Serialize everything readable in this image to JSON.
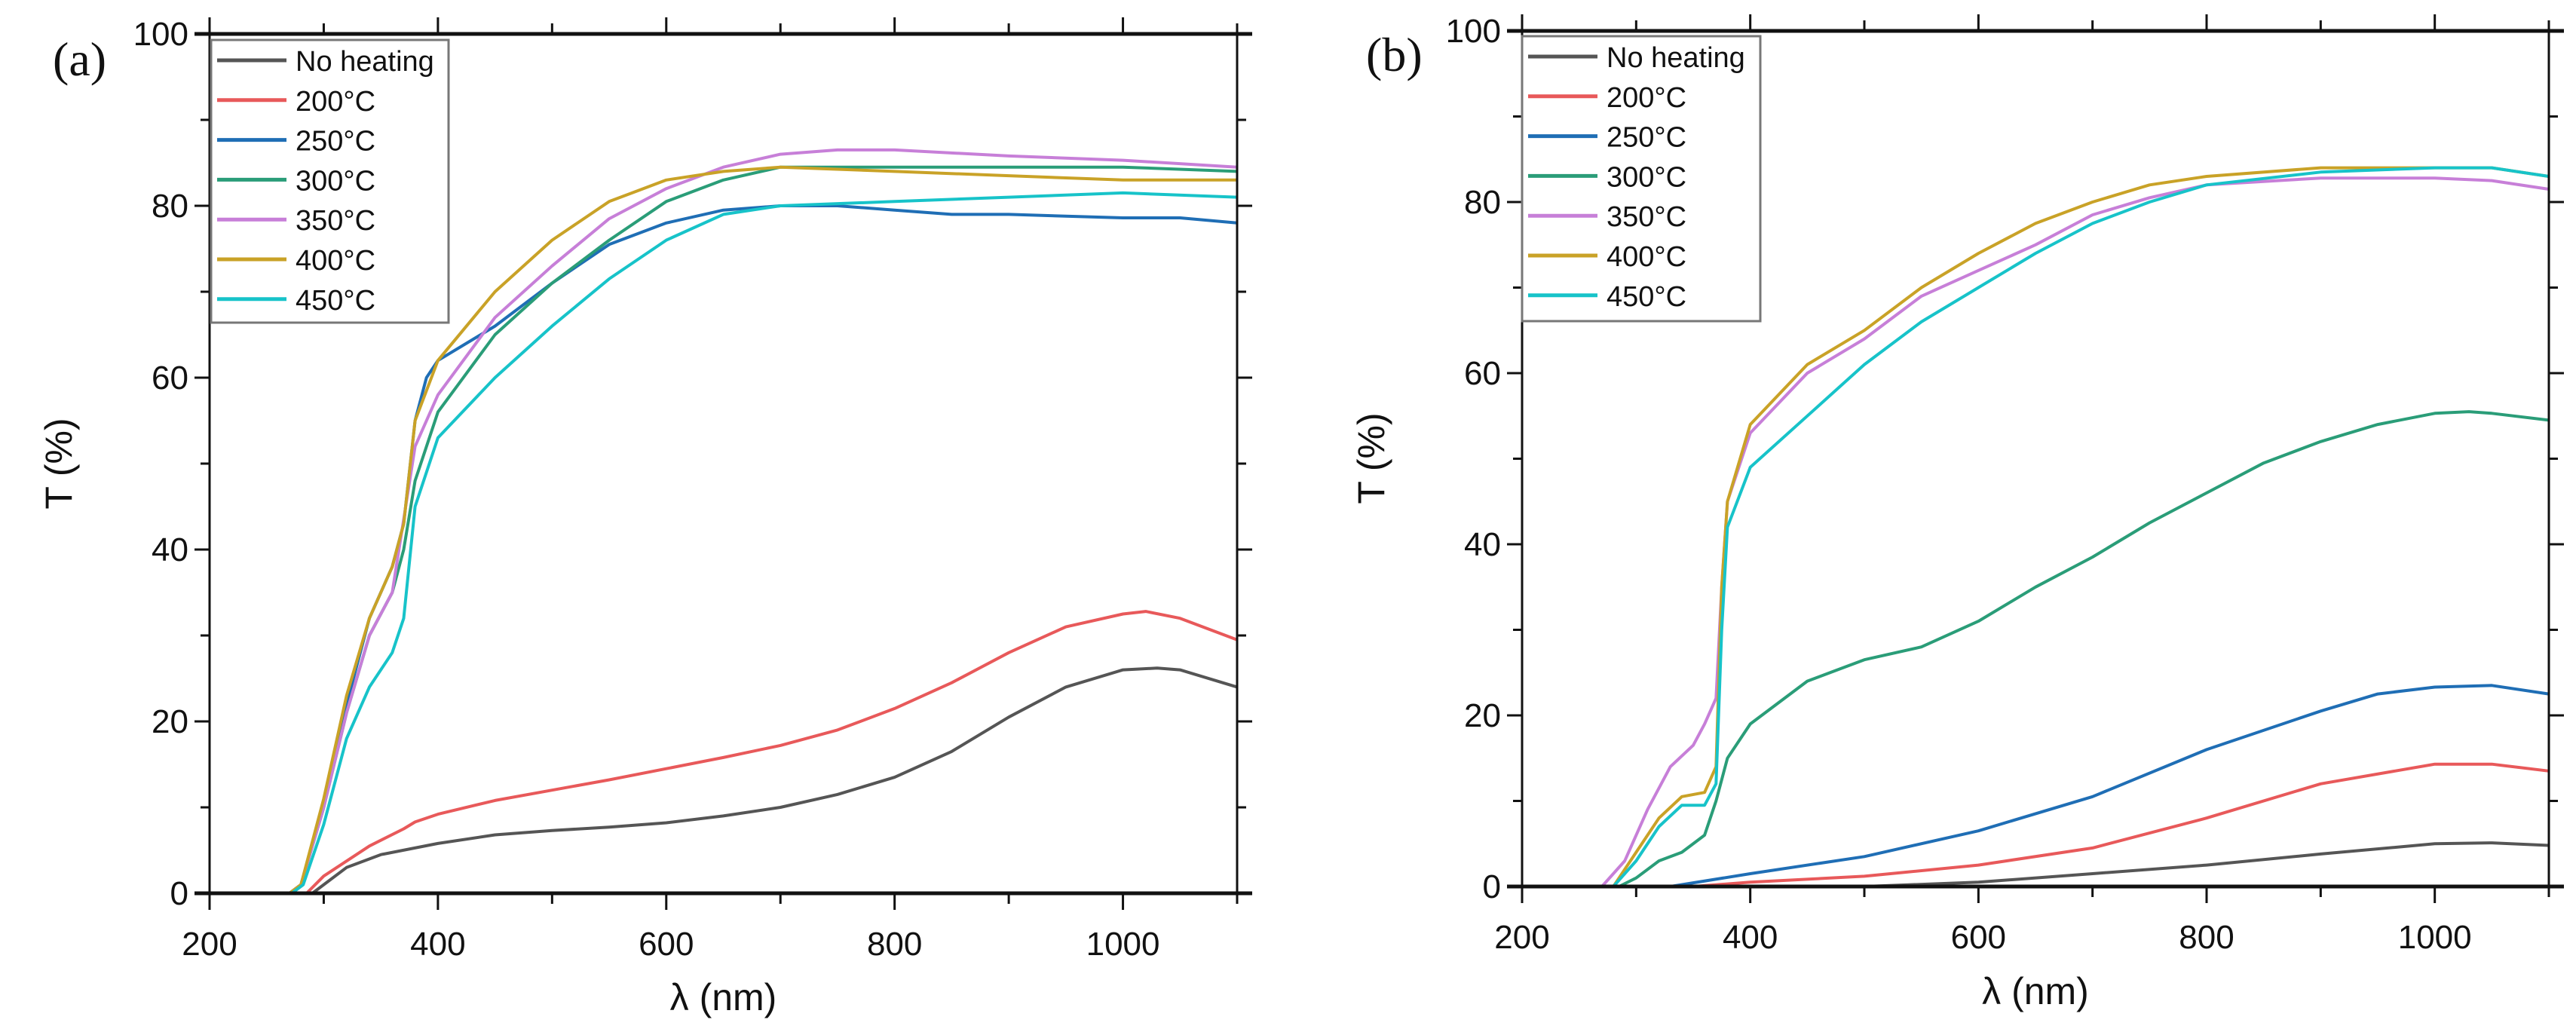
{
  "chart_data": [
    {
      "panel_label": "(a)",
      "type": "line",
      "xlabel": "λ (nm)",
      "ylabel": "T (%)",
      "xlim": [
        200,
        1100
      ],
      "ylim": [
        0,
        100
      ],
      "xticks": [
        200,
        400,
        600,
        800,
        1000
      ],
      "yticks": [
        0,
        20,
        40,
        60,
        80,
        100
      ],
      "grid": false,
      "legend_position": "top-left",
      "series": [
        {
          "name": "No heating",
          "color": "#555555",
          "x": [
            200,
            290,
            300,
            320,
            350,
            400,
            450,
            500,
            550,
            600,
            650,
            700,
            750,
            800,
            850,
            900,
            950,
            1000,
            1030,
            1050,
            1100
          ],
          "y": [
            0,
            0,
            1,
            3,
            4.5,
            5.8,
            6.8,
            7.3,
            7.7,
            8.2,
            9,
            10,
            11.5,
            13.5,
            16.5,
            20.5,
            24,
            26,
            26.2,
            26,
            24
          ]
        },
        {
          "name": "200°C",
          "color": "#e8595a",
          "x": [
            200,
            285,
            300,
            340,
            370,
            380,
            400,
            450,
            500,
            550,
            600,
            650,
            700,
            750,
            800,
            850,
            900,
            950,
            1000,
            1020,
            1050,
            1100
          ],
          "y": [
            0,
            0,
            2,
            5.5,
            7.5,
            8.3,
            9.2,
            10.8,
            12,
            13.2,
            14.5,
            15.8,
            17.2,
            19,
            21.5,
            24.5,
            28,
            31,
            32.5,
            32.8,
            32,
            29.5
          ]
        },
        {
          "name": "250°C",
          "color": "#1f6eb5",
          "x": [
            200,
            270,
            280,
            300,
            320,
            340,
            360,
            370,
            380,
            390,
            400,
            450,
            500,
            550,
            600,
            650,
            700,
            750,
            800,
            850,
            900,
            950,
            1000,
            1050,
            1100
          ],
          "y": [
            0,
            0,
            1,
            10,
            22,
            32,
            38,
            43,
            55,
            60,
            62,
            66,
            71,
            75.5,
            78,
            79.5,
            80,
            80,
            79.5,
            79,
            79,
            78.8,
            78.6,
            78.6,
            78
          ]
        },
        {
          "name": "300°C",
          "color": "#2a9d78",
          "x": [
            200,
            270,
            280,
            300,
            320,
            340,
            360,
            370,
            380,
            400,
            450,
            500,
            550,
            600,
            650,
            700,
            800,
            900,
            1000,
            1100
          ],
          "y": [
            0,
            0,
            1,
            10,
            21,
            30,
            35,
            40,
            48,
            56,
            65,
            71,
            76,
            80.5,
            83,
            84.5,
            84.5,
            84.5,
            84.5,
            84
          ]
        },
        {
          "name": "350°C",
          "color": "#c77fd8",
          "x": [
            200,
            270,
            280,
            300,
            320,
            340,
            360,
            380,
            400,
            450,
            500,
            550,
            600,
            650,
            700,
            750,
            800,
            900,
            1000,
            1100
          ],
          "y": [
            0,
            0,
            1,
            10,
            21,
            30,
            35,
            52,
            58,
            67,
            73,
            78.5,
            82,
            84.5,
            86,
            86.5,
            86.5,
            85.8,
            85.3,
            84.5
          ]
        },
        {
          "name": "400°C",
          "color": "#c9a227",
          "x": [
            200,
            270,
            280,
            300,
            320,
            340,
            360,
            370,
            380,
            400,
            450,
            500,
            550,
            600,
            650,
            700,
            800,
            900,
            1000,
            1100
          ],
          "y": [
            0,
            0,
            1,
            11,
            23,
            32,
            38,
            43,
            55,
            62,
            70,
            76,
            80.5,
            83,
            84,
            84.5,
            84,
            83.5,
            83,
            83
          ]
        },
        {
          "name": "450°C",
          "color": "#17c3c9",
          "x": [
            200,
            272,
            282,
            300,
            320,
            340,
            360,
            370,
            380,
            400,
            450,
            500,
            550,
            600,
            650,
            700,
            800,
            900,
            1000,
            1100
          ],
          "y": [
            0,
            0,
            1,
            8,
            18,
            24,
            28,
            32,
            45,
            53,
            60,
            66,
            71.5,
            76,
            79,
            80,
            80.5,
            81,
            81.5,
            81
          ]
        }
      ]
    },
    {
      "panel_label": "(b)",
      "type": "line",
      "xlabel": "λ (nm)",
      "ylabel": "T (%)",
      "xlim": [
        200,
        1100
      ],
      "ylim": [
        0,
        100
      ],
      "xticks": [
        200,
        400,
        600,
        800,
        1000
      ],
      "yticks": [
        0,
        20,
        40,
        60,
        80,
        100
      ],
      "grid": false,
      "legend_position": "top-left",
      "series": [
        {
          "name": "No heating",
          "color": "#555555",
          "x": [
            200,
            500,
            600,
            700,
            800,
            900,
            1000,
            1050,
            1100
          ],
          "y": [
            0,
            0,
            0.5,
            1.5,
            2.5,
            3.8,
            5,
            5.1,
            4.8
          ]
        },
        {
          "name": "200°C",
          "color": "#e8595a",
          "x": [
            200,
            350,
            400,
            500,
            600,
            700,
            800,
            900,
            1000,
            1050,
            1100
          ],
          "y": [
            0,
            0,
            0.5,
            1.2,
            2.5,
            4.5,
            8,
            12,
            14.3,
            14.3,
            13.5
          ]
        },
        {
          "name": "250°C",
          "color": "#1f6eb5",
          "x": [
            200,
            330,
            400,
            500,
            600,
            700,
            800,
            900,
            950,
            1000,
            1050,
            1100
          ],
          "y": [
            0,
            0,
            1.5,
            3.5,
            6.5,
            10.5,
            16,
            20.5,
            22.5,
            23.3,
            23.5,
            22.5
          ]
        },
        {
          "name": "300°C",
          "color": "#2a9d78",
          "x": [
            200,
            285,
            300,
            320,
            340,
            360,
            370,
            380,
            400,
            450,
            500,
            550,
            600,
            650,
            700,
            750,
            800,
            850,
            900,
            950,
            1000,
            1030,
            1050,
            1100
          ],
          "y": [
            0,
            0,
            1,
            3,
            4,
            6,
            10,
            15,
            19,
            24,
            26.5,
            28,
            31,
            35,
            38.5,
            42.5,
            46,
            49.5,
            52,
            54,
            55.3,
            55.5,
            55.3,
            54.5
          ]
        },
        {
          "name": "350°C",
          "color": "#c77fd8",
          "x": [
            200,
            270,
            290,
            310,
            330,
            350,
            360,
            370,
            375,
            380,
            400,
            450,
            500,
            550,
            600,
            650,
            700,
            750,
            800,
            900,
            1000,
            1050,
            1100
          ],
          "y": [
            0,
            0,
            3,
            9,
            14,
            16.5,
            19,
            22,
            35,
            45,
            53,
            60,
            64,
            69,
            72,
            75,
            78.5,
            80.5,
            82,
            82.8,
            82.8,
            82.5,
            81.5
          ]
        },
        {
          "name": "400°C",
          "color": "#c9a227",
          "x": [
            200,
            280,
            300,
            320,
            340,
            360,
            370,
            375,
            380,
            400,
            450,
            500,
            550,
            600,
            650,
            700,
            750,
            800,
            900,
            1000,
            1050,
            1100
          ],
          "y": [
            0,
            0,
            4,
            8,
            10.5,
            11,
            14,
            35,
            45,
            54,
            61,
            65,
            70,
            74,
            77.5,
            80,
            82,
            83,
            84,
            84,
            84,
            83
          ]
        },
        {
          "name": "450°C",
          "color": "#17c3c9",
          "x": [
            200,
            280,
            300,
            320,
            340,
            360,
            370,
            375,
            380,
            400,
            450,
            500,
            550,
            600,
            650,
            700,
            750,
            800,
            900,
            1000,
            1050,
            1100
          ],
          "y": [
            0,
            0,
            3,
            7,
            9.5,
            9.5,
            12,
            30,
            42,
            49,
            55,
            61,
            66,
            70,
            74,
            77.5,
            80,
            82,
            83.5,
            84,
            84,
            83
          ]
        }
      ]
    }
  ]
}
